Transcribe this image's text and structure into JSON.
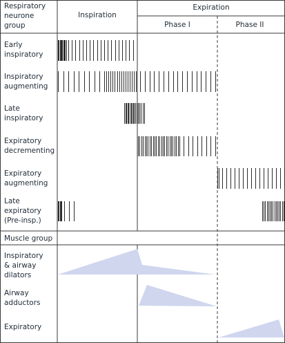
{
  "header": {
    "group_label": [
      "Respiratory",
      "neurone",
      "group"
    ],
    "inspiration": "Inspiration",
    "expiration": "Expiration",
    "phase1": "Phase I",
    "phase2": "Phase II"
  },
  "neurone_rows": [
    {
      "label": [
        "Early",
        "inspiratory"
      ]
    },
    {
      "label": [
        "Inspiratory",
        "augmenting"
      ]
    },
    {
      "label": [
        "Late",
        "inspiratory"
      ]
    },
    {
      "label": [
        "Expiratory",
        "decrementing"
      ]
    },
    {
      "label": [
        "Expiratory",
        "augmenting"
      ]
    },
    {
      "label": [
        "Late",
        "expiratory",
        "(Pre-insp.)"
      ]
    }
  ],
  "muscle_header": "Muscle group",
  "muscle_rows": [
    {
      "label": [
        "Inspiratory",
        "& airway",
        "dilators"
      ]
    },
    {
      "label": [
        "Airway",
        "adductors"
      ]
    },
    {
      "label": [
        "Expiratory"
      ]
    }
  ],
  "colors": {
    "grid": "#3a3a3a",
    "spike": "#2b2b2b",
    "activity_fill": "#cfd6ee"
  }
}
